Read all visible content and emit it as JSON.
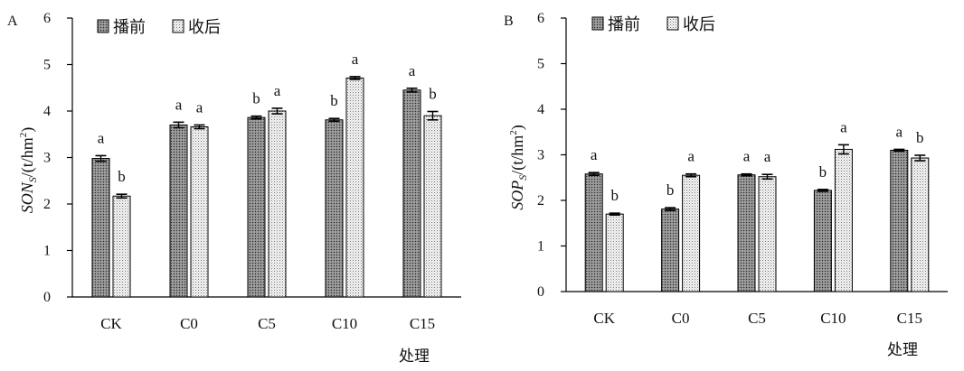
{
  "chart_data": [
    {
      "type": "bar",
      "panel": "A",
      "categories": [
        "CK",
        "C0",
        "C5",
        "C10",
        "C15"
      ],
      "xlabel": "处理",
      "ylabel": {
        "prefix": "SON",
        "subscript": "S",
        "unit_prefix": "/(t/hm",
        "unit_sup": "2",
        "unit_suffix": ")"
      },
      "ylim": [
        0,
        6
      ],
      "yticks": [
        "0",
        "1",
        "2",
        "3",
        "4",
        "5",
        "6"
      ],
      "legend": [
        "播前",
        "收后"
      ],
      "legend_position": "top-left",
      "series": [
        {
          "name": "播前",
          "values": [
            2.98,
            3.7,
            3.86,
            3.81,
            4.45
          ],
          "errors": [
            0.06,
            0.06,
            0.03,
            0.03,
            0.04
          ],
          "labels": [
            "a",
            "a",
            "b",
            "b",
            "a"
          ]
        },
        {
          "name": "收后",
          "values": [
            2.17,
            3.66,
            4.0,
            4.71,
            3.9
          ],
          "errors": [
            0.04,
            0.04,
            0.06,
            0.03,
            0.09
          ],
          "labels": [
            "b",
            "a",
            "a",
            "a",
            "b"
          ]
        }
      ]
    },
    {
      "type": "bar",
      "panel": "B",
      "categories": [
        "CK",
        "C0",
        "C5",
        "C10",
        "C15"
      ],
      "xlabel": "处理",
      "ylabel": {
        "prefix": "SOP",
        "subscript": "S",
        "unit_prefix": "/(t/hm",
        "unit_sup": "2",
        "unit_suffix": ")"
      },
      "ylim": [
        0,
        6
      ],
      "yticks": [
        "0",
        "1",
        "2",
        "3",
        "4",
        "5",
        "6"
      ],
      "legend": [
        "播前",
        "收后"
      ],
      "legend_position": "top-left",
      "series": [
        {
          "name": "播前",
          "values": [
            2.58,
            1.81,
            2.56,
            2.22,
            3.1
          ],
          "errors": [
            0.03,
            0.03,
            0.02,
            0.02,
            0.02
          ],
          "labels": [
            "a",
            "b",
            "a",
            "b",
            "a"
          ]
        },
        {
          "name": "收后",
          "values": [
            1.7,
            2.55,
            2.52,
            3.12,
            2.93
          ],
          "errors": [
            0.02,
            0.03,
            0.05,
            0.1,
            0.06
          ],
          "labels": [
            "b",
            "a",
            "a",
            "a",
            "b"
          ]
        }
      ]
    }
  ]
}
